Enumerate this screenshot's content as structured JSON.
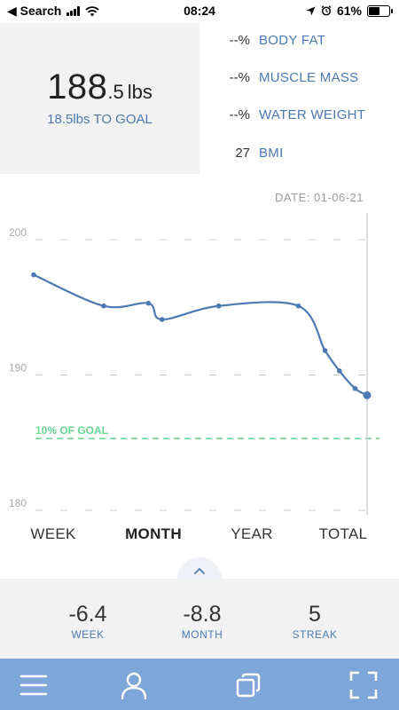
{
  "status_bar": {
    "back_label": "◀ Search",
    "time": "08:24",
    "battery": "61%",
    "battery_level": 0.61
  },
  "weight": {
    "whole": "188",
    "decimal": ".5",
    "unit": "lbs",
    "to_goal": "18.5lbs TO GOAL"
  },
  "metrics": [
    {
      "value": "--%",
      "label": "BODY FAT"
    },
    {
      "value": "--%",
      "label": "MUSCLE MASS"
    },
    {
      "value": "--%",
      "label": "WATER WEIGHT"
    },
    {
      "value": "27",
      "label": "BMI"
    }
  ],
  "date_label": "DATE:  01-06-21",
  "chart_data": {
    "type": "line",
    "ylim": [
      180,
      200
    ],
    "y_ticks": [
      {
        "value": 200,
        "label": "200"
      },
      {
        "value": 190,
        "label": "190"
      },
      {
        "value": 180,
        "label": "180"
      }
    ],
    "series": [
      {
        "color": "#4b79b4",
        "points": [
          {
            "x": 0,
            "y": 197.4
          },
          {
            "x": 0.21,
            "y": 195.1
          },
          {
            "x": 0.344,
            "y": 195.3
          },
          {
            "x": 0.385,
            "y": 194.1
          },
          {
            "x": 0.555,
            "y": 195.1
          },
          {
            "x": 0.794,
            "y": 195.1
          },
          {
            "x": 0.874,
            "y": 191.8
          },
          {
            "x": 0.917,
            "y": 190.3
          },
          {
            "x": 0.964,
            "y": 189.0
          },
          {
            "x": 1,
            "y": 188.5
          }
        ]
      }
    ],
    "goal_line": {
      "value": 185.3,
      "label": "10% OF GOAL",
      "color": "#67d693"
    }
  },
  "range_tabs": [
    {
      "label": "WEEK",
      "active": false
    },
    {
      "label": "MONTH",
      "active": true
    },
    {
      "label": "YEAR",
      "active": false
    },
    {
      "label": "TOTAL",
      "active": false
    }
  ],
  "stats": [
    {
      "value": "-6.4",
      "label": "WEEK"
    },
    {
      "value": "-8.8",
      "label": "MONTH"
    },
    {
      "value": "5",
      "label": "STREAK"
    }
  ],
  "nav": [
    {
      "icon": "menu-icon"
    },
    {
      "icon": "profile-icon"
    },
    {
      "icon": "pages-icon"
    },
    {
      "icon": "fullscreen-icon"
    }
  ]
}
